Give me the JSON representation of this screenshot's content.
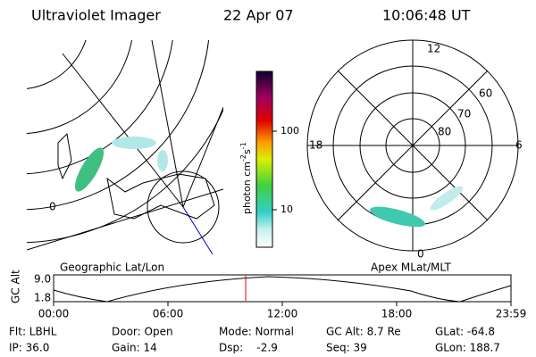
{
  "header": {
    "title": "Ultraviolet Imager",
    "date": "22 Apr 07",
    "time": "10:06:48 UT"
  },
  "colorbar": {
    "label": "photon cm",
    "exp1": "-2",
    "unit2": "s",
    "exp2": "-1",
    "ticks": [
      "100",
      "10"
    ]
  },
  "left_map": {
    "caption": "Geographic Lat/Lon",
    "lon_label": "0"
  },
  "right_map": {
    "caption": "Apex MLat/MLT",
    "mlt_labels": [
      "12",
      "18",
      "6",
      "0"
    ],
    "mlat_labels": [
      "60",
      "70",
      "80"
    ]
  },
  "altitude": {
    "axis_label": "GC Alt",
    "yticks": [
      "9.0",
      "1.8"
    ],
    "xticks": [
      "00:00",
      "06:00",
      "12:00",
      "18:00",
      "23:59"
    ]
  },
  "info": [
    [
      "Flt: LBHL",
      "Door: Open",
      "Mode: Normal",
      "GC Alt: 8.7 Re",
      "GLat: -64.8"
    ],
    [
      "IP: 36.0",
      "Gain: 14",
      "Dsp:    -2.9",
      "Seq: 39",
      "GLon: 188.7"
    ]
  ]
}
